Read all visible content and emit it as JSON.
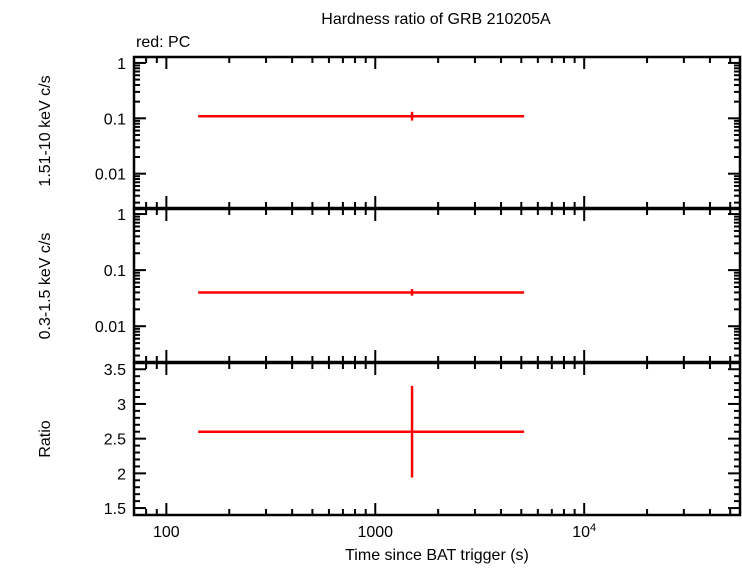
{
  "chart_data": [
    {
      "type": "scatter",
      "title": "Hardness ratio of GRB 210205A",
      "legend_note": "red: PC",
      "ylabel": "1.51-10 keV c/s",
      "xscale": "log",
      "yscale": "log",
      "xlim": [
        70,
        55700
      ],
      "ylim": [
        0.0024,
        1.28
      ],
      "yticks": [
        {
          "v": 1,
          "label": "1"
        },
        {
          "v": 0.1,
          "label": "0.1"
        },
        {
          "v": 0.01,
          "label": "0.01"
        }
      ],
      "series": [
        {
          "color": "#ff0000",
          "points": [
            {
              "x": 1500,
              "xlo": 142,
              "xhi": 5160,
              "y": 0.109,
              "ylo": 0.091,
              "yhi": 0.131
            }
          ]
        }
      ]
    },
    {
      "type": "scatter",
      "ylabel": "0.3-1.5 keV c/s",
      "xscale": "log",
      "yscale": "log",
      "xlim": [
        70,
        55700
      ],
      "ylim": [
        0.0023,
        1.23
      ],
      "yticks": [
        {
          "v": 1,
          "label": "1"
        },
        {
          "v": 0.1,
          "label": "0.1"
        },
        {
          "v": 0.01,
          "label": "0.01"
        }
      ],
      "series": [
        {
          "color": "#ff0000",
          "points": [
            {
              "x": 1500,
              "xlo": 142,
              "xhi": 5160,
              "y": 0.04,
              "ylo": 0.035,
              "yhi": 0.046
            }
          ]
        }
      ]
    },
    {
      "type": "scatter",
      "ylabel": "Ratio",
      "xlabel": "Time since BAT trigger (s)",
      "xscale": "log",
      "yscale": "linear",
      "xlim": [
        70,
        55700
      ],
      "ylim": [
        1.4,
        3.59
      ],
      "xticks": [
        {
          "v": 100,
          "label": "100"
        },
        {
          "v": 1000,
          "label": "1000"
        },
        {
          "v": 10000,
          "label": "10",
          "sup": "4"
        }
      ],
      "yticks": [
        {
          "v": 3.5,
          "label": "3.5"
        },
        {
          "v": 3,
          "label": "3"
        },
        {
          "v": 2.5,
          "label": "2.5"
        },
        {
          "v": 2,
          "label": "2"
        },
        {
          "v": 1.5,
          "label": "1.5"
        }
      ],
      "series": [
        {
          "color": "#ff0000",
          "points": [
            {
              "x": 1500,
              "xlo": 142,
              "xhi": 5160,
              "y": 2.6,
              "ylo": 1.94,
              "yhi": 3.26
            }
          ]
        }
      ]
    }
  ]
}
